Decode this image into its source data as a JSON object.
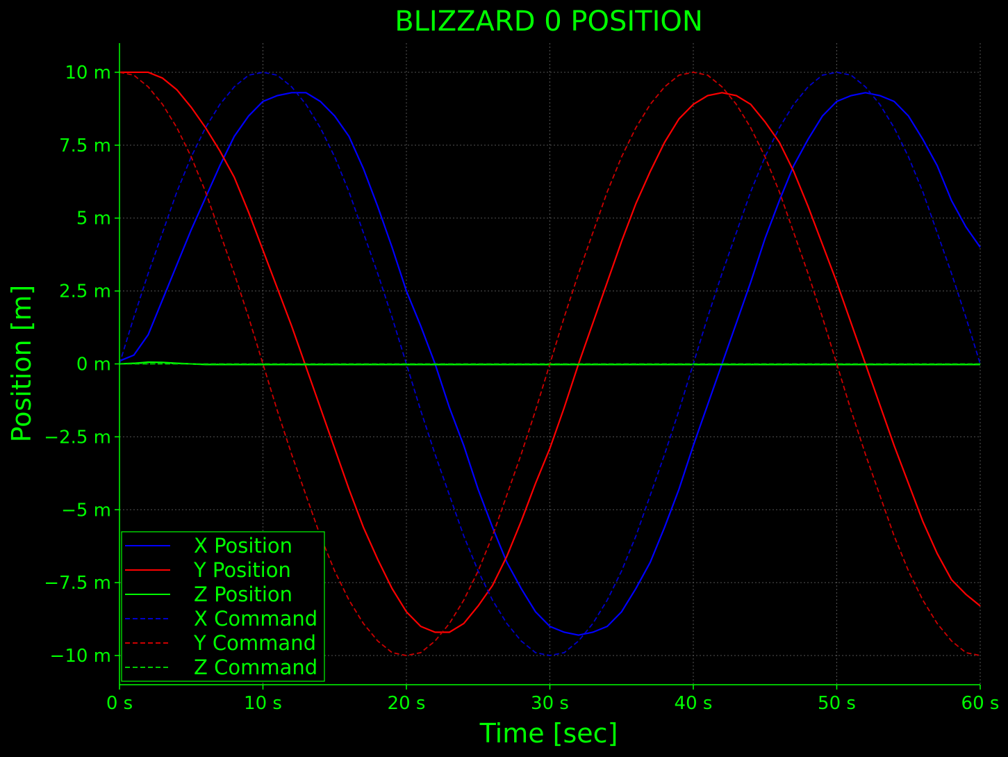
{
  "chart_data": {
    "type": "line",
    "title": "BLIZZARD 0 POSITION",
    "xlabel": "Time [sec]",
    "ylabel": "Position [m]",
    "xlim": [
      0,
      60
    ],
    "ylim": [
      -11,
      11
    ],
    "grid": true,
    "legend_position": "bottom-left",
    "x_ticks": [
      0,
      10,
      20,
      30,
      40,
      50,
      60
    ],
    "x_tick_labels": [
      "0 s",
      "10 s",
      "20 s",
      "30 s",
      "40 s",
      "50 s",
      "60 s"
    ],
    "y_ticks": [
      10,
      7.5,
      5,
      2.5,
      0,
      -2.5,
      -5,
      -7.5,
      -10
    ],
    "y_tick_labels": [
      "10 m",
      "7.5 m",
      "5 m",
      "2.5 m",
      "0 m",
      "−2.5 m",
      "−5 m",
      "−7.5 m",
      "−10 m"
    ],
    "colors": {
      "background": "#000000",
      "foreground": "#00ff00",
      "grid": "#555555",
      "x": "#0000ff",
      "y": "#ff0000",
      "z": "#00ff00",
      "x_cmd": "#0000cc",
      "y_cmd": "#cc0000",
      "z_cmd": "#00cc00"
    },
    "series": [
      {
        "name": "X Position",
        "color": "#0000ff",
        "style": "solid",
        "x": [
          0,
          1,
          2,
          3,
          4,
          5,
          6,
          7,
          8,
          9,
          10,
          11,
          12,
          13,
          14,
          15,
          16,
          17,
          18,
          19,
          20,
          21,
          22,
          23,
          24,
          25,
          26,
          27,
          28,
          29,
          30,
          31,
          32,
          33,
          34,
          35,
          36,
          37,
          38,
          39,
          40,
          41,
          42,
          43,
          44,
          45,
          46,
          47,
          48,
          49,
          50,
          51,
          52,
          53,
          54,
          55,
          56,
          57,
          58,
          59,
          60
        ],
        "y": [
          0.1,
          0.3,
          1.0,
          2.2,
          3.4,
          4.6,
          5.7,
          6.8,
          7.8,
          8.5,
          9.0,
          9.2,
          9.3,
          9.3,
          9.0,
          8.5,
          7.8,
          6.7,
          5.4,
          4.0,
          2.5,
          1.3,
          0.0,
          -1.5,
          -2.8,
          -4.3,
          -5.6,
          -6.8,
          -7.7,
          -8.5,
          -9.0,
          -9.2,
          -9.3,
          -9.2,
          -9.0,
          -8.5,
          -7.7,
          -6.8,
          -5.6,
          -4.3,
          -2.8,
          -1.4,
          0.0,
          1.4,
          2.8,
          4.3,
          5.6,
          6.8,
          7.7,
          8.5,
          9.0,
          9.2,
          9.3,
          9.2,
          9.0,
          8.5,
          7.7,
          6.8,
          5.6,
          4.7,
          4.0
        ]
      },
      {
        "name": "Y Position",
        "color": "#ff0000",
        "style": "solid",
        "x": [
          0,
          1,
          2,
          3,
          4,
          5,
          6,
          7,
          8,
          9,
          10,
          11,
          12,
          13,
          14,
          15,
          16,
          17,
          18,
          19,
          20,
          21,
          22,
          23,
          24,
          25,
          26,
          27,
          28,
          29,
          30,
          31,
          32,
          33,
          34,
          35,
          36,
          37,
          38,
          39,
          40,
          41,
          42,
          43,
          44,
          45,
          46,
          47,
          48,
          49,
          50,
          51,
          52,
          53,
          54,
          55,
          56,
          57,
          58,
          59,
          60
        ],
        "y": [
          10.0,
          10.0,
          10.0,
          9.8,
          9.4,
          8.8,
          8.1,
          7.3,
          6.4,
          5.2,
          3.9,
          2.6,
          1.3,
          -0.1,
          -1.5,
          -2.9,
          -4.3,
          -5.6,
          -6.7,
          -7.7,
          -8.5,
          -9.0,
          -9.2,
          -9.2,
          -8.9,
          -8.3,
          -7.6,
          -6.6,
          -5.4,
          -4.1,
          -2.9,
          -1.5,
          0.0,
          1.4,
          2.8,
          4.2,
          5.5,
          6.6,
          7.6,
          8.4,
          8.9,
          9.2,
          9.3,
          9.2,
          8.9,
          8.3,
          7.6,
          6.6,
          5.4,
          4.1,
          2.8,
          1.4,
          0.0,
          -1.4,
          -2.8,
          -4.1,
          -5.4,
          -6.5,
          -7.4,
          -7.9,
          -8.3
        ]
      },
      {
        "name": "Z Position",
        "color": "#00ff00",
        "style": "solid",
        "x": [
          0,
          1,
          2,
          3,
          4,
          5,
          6,
          10,
          20,
          30,
          40,
          50,
          60
        ],
        "y": [
          0.0,
          0.02,
          0.06,
          0.05,
          0.02,
          0.0,
          -0.02,
          -0.02,
          -0.02,
          -0.02,
          -0.02,
          -0.02,
          -0.02
        ]
      },
      {
        "name": "X Command",
        "color": "#0000cc",
        "style": "dashed",
        "x": [
          0,
          1,
          2,
          3,
          4,
          5,
          6,
          7,
          8,
          9,
          10,
          11,
          12,
          13,
          14,
          15,
          16,
          17,
          18,
          19,
          20,
          21,
          22,
          23,
          24,
          25,
          26,
          27,
          28,
          29,
          30,
          31,
          32,
          33,
          34,
          35,
          36,
          37,
          38,
          39,
          40,
          41,
          42,
          43,
          44,
          45,
          46,
          47,
          48,
          49,
          50,
          51,
          52,
          53,
          54,
          55,
          56,
          57,
          58,
          59,
          60
        ],
        "y": [
          0.0,
          1.6,
          3.1,
          4.5,
          5.9,
          7.1,
          8.1,
          8.9,
          9.5,
          9.9,
          10.0,
          9.9,
          9.5,
          8.9,
          8.1,
          7.1,
          5.9,
          4.5,
          3.1,
          1.6,
          0.0,
          -1.6,
          -3.1,
          -4.5,
          -5.9,
          -7.1,
          -8.1,
          -8.9,
          -9.5,
          -9.9,
          -10.0,
          -9.9,
          -9.5,
          -8.9,
          -8.1,
          -7.1,
          -5.9,
          -4.5,
          -3.1,
          -1.6,
          0.0,
          1.6,
          3.1,
          4.5,
          5.9,
          7.1,
          8.1,
          8.9,
          9.5,
          9.9,
          10.0,
          9.9,
          9.5,
          8.9,
          8.1,
          7.1,
          5.9,
          4.5,
          3.1,
          1.6,
          0.0
        ]
      },
      {
        "name": "Y Command",
        "color": "#cc0000",
        "style": "dashed",
        "x": [
          0,
          1,
          2,
          3,
          4,
          5,
          6,
          7,
          8,
          9,
          10,
          11,
          12,
          13,
          14,
          15,
          16,
          17,
          18,
          19,
          20,
          21,
          22,
          23,
          24,
          25,
          26,
          27,
          28,
          29,
          30,
          31,
          32,
          33,
          34,
          35,
          36,
          37,
          38,
          39,
          40,
          41,
          42,
          43,
          44,
          45,
          46,
          47,
          48,
          49,
          50,
          51,
          52,
          53,
          54,
          55,
          56,
          57,
          58,
          59,
          60
        ],
        "y": [
          10.0,
          9.9,
          9.5,
          8.9,
          8.1,
          7.1,
          5.9,
          4.5,
          3.1,
          1.6,
          0.0,
          -1.6,
          -3.1,
          -4.5,
          -5.9,
          -7.1,
          -8.1,
          -8.9,
          -9.5,
          -9.9,
          -10.0,
          -9.9,
          -9.5,
          -8.9,
          -8.1,
          -7.1,
          -5.9,
          -4.5,
          -3.1,
          -1.6,
          0.0,
          1.6,
          3.1,
          4.5,
          5.9,
          7.1,
          8.1,
          8.9,
          9.5,
          9.9,
          10.0,
          9.9,
          9.5,
          8.9,
          8.1,
          7.1,
          5.9,
          4.5,
          3.1,
          1.6,
          0.0,
          -1.6,
          -3.1,
          -4.5,
          -5.9,
          -7.1,
          -8.1,
          -8.9,
          -9.5,
          -9.9,
          -10.0
        ]
      },
      {
        "name": "Z Command",
        "color": "#00cc00",
        "style": "dashed",
        "x": [
          0,
          60
        ],
        "y": [
          0.0,
          0.0
        ]
      }
    ]
  }
}
